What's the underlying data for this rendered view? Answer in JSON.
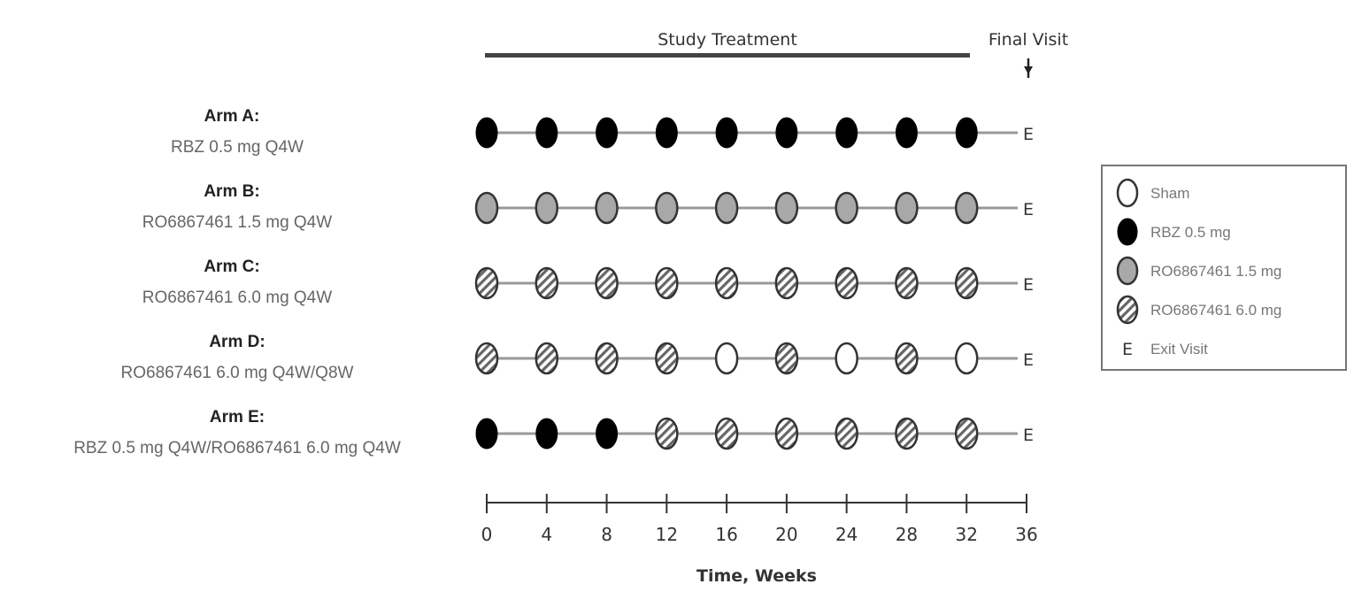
{
  "header": {
    "study_treatment": "Study Treatment",
    "final_visit": "Final Visit"
  },
  "arms": [
    {
      "name": "Arm A:",
      "desc": "RBZ 0.5 mg Q4W",
      "doses": [
        "rbz",
        "rbz",
        "rbz",
        "rbz",
        "rbz",
        "rbz",
        "rbz",
        "rbz",
        "rbz"
      ]
    },
    {
      "name": "Arm B:",
      "desc": "RO6867461 1.5 mg Q4W",
      "doses": [
        "ro15",
        "ro15",
        "ro15",
        "ro15",
        "ro15",
        "ro15",
        "ro15",
        "ro15",
        "ro15"
      ]
    },
    {
      "name": "Arm C:",
      "desc": "RO6867461 6.0 mg Q4W",
      "doses": [
        "ro6",
        "ro6",
        "ro6",
        "ro6",
        "ro6",
        "ro6",
        "ro6",
        "ro6",
        "ro6"
      ]
    },
    {
      "name": "Arm D:",
      "desc": "RO6867461 6.0 mg Q4W/Q8W",
      "doses": [
        "ro6",
        "ro6",
        "ro6",
        "ro6",
        "sham",
        "ro6",
        "sham",
        "ro6",
        "sham"
      ]
    },
    {
      "name": "Arm E:",
      "desc": "RBZ 0.5 mg Q4W/RO6867461 6.0 mg Q4W",
      "doses": [
        "rbz",
        "rbz",
        "rbz",
        "ro6",
        "ro6",
        "ro6",
        "ro6",
        "ro6",
        "ro6"
      ]
    }
  ],
  "exit_marker": "E",
  "axis": {
    "label": "Time, Weeks",
    "ticks": [
      "0",
      "4",
      "8",
      "12",
      "16",
      "20",
      "24",
      "28",
      "32",
      "36"
    ],
    "values": [
      0,
      4,
      8,
      12,
      16,
      20,
      24,
      28,
      32,
      36
    ]
  },
  "legend": [
    {
      "type": "sham",
      "label": "Sham"
    },
    {
      "type": "rbz",
      "label": "RBZ 0.5 mg"
    },
    {
      "type": "ro15",
      "label": "RO6867461 1.5 mg"
    },
    {
      "type": "ro6",
      "label": "RO6867461 6.0 mg"
    },
    {
      "type": "exit",
      "label": "Exit Visit",
      "marker": "E"
    }
  ],
  "colors": {
    "rbz": "#000000",
    "ro15": "#a8a8a8",
    "sham": "#ffffff",
    "ro6": "hatched",
    "line": "#999999"
  }
}
